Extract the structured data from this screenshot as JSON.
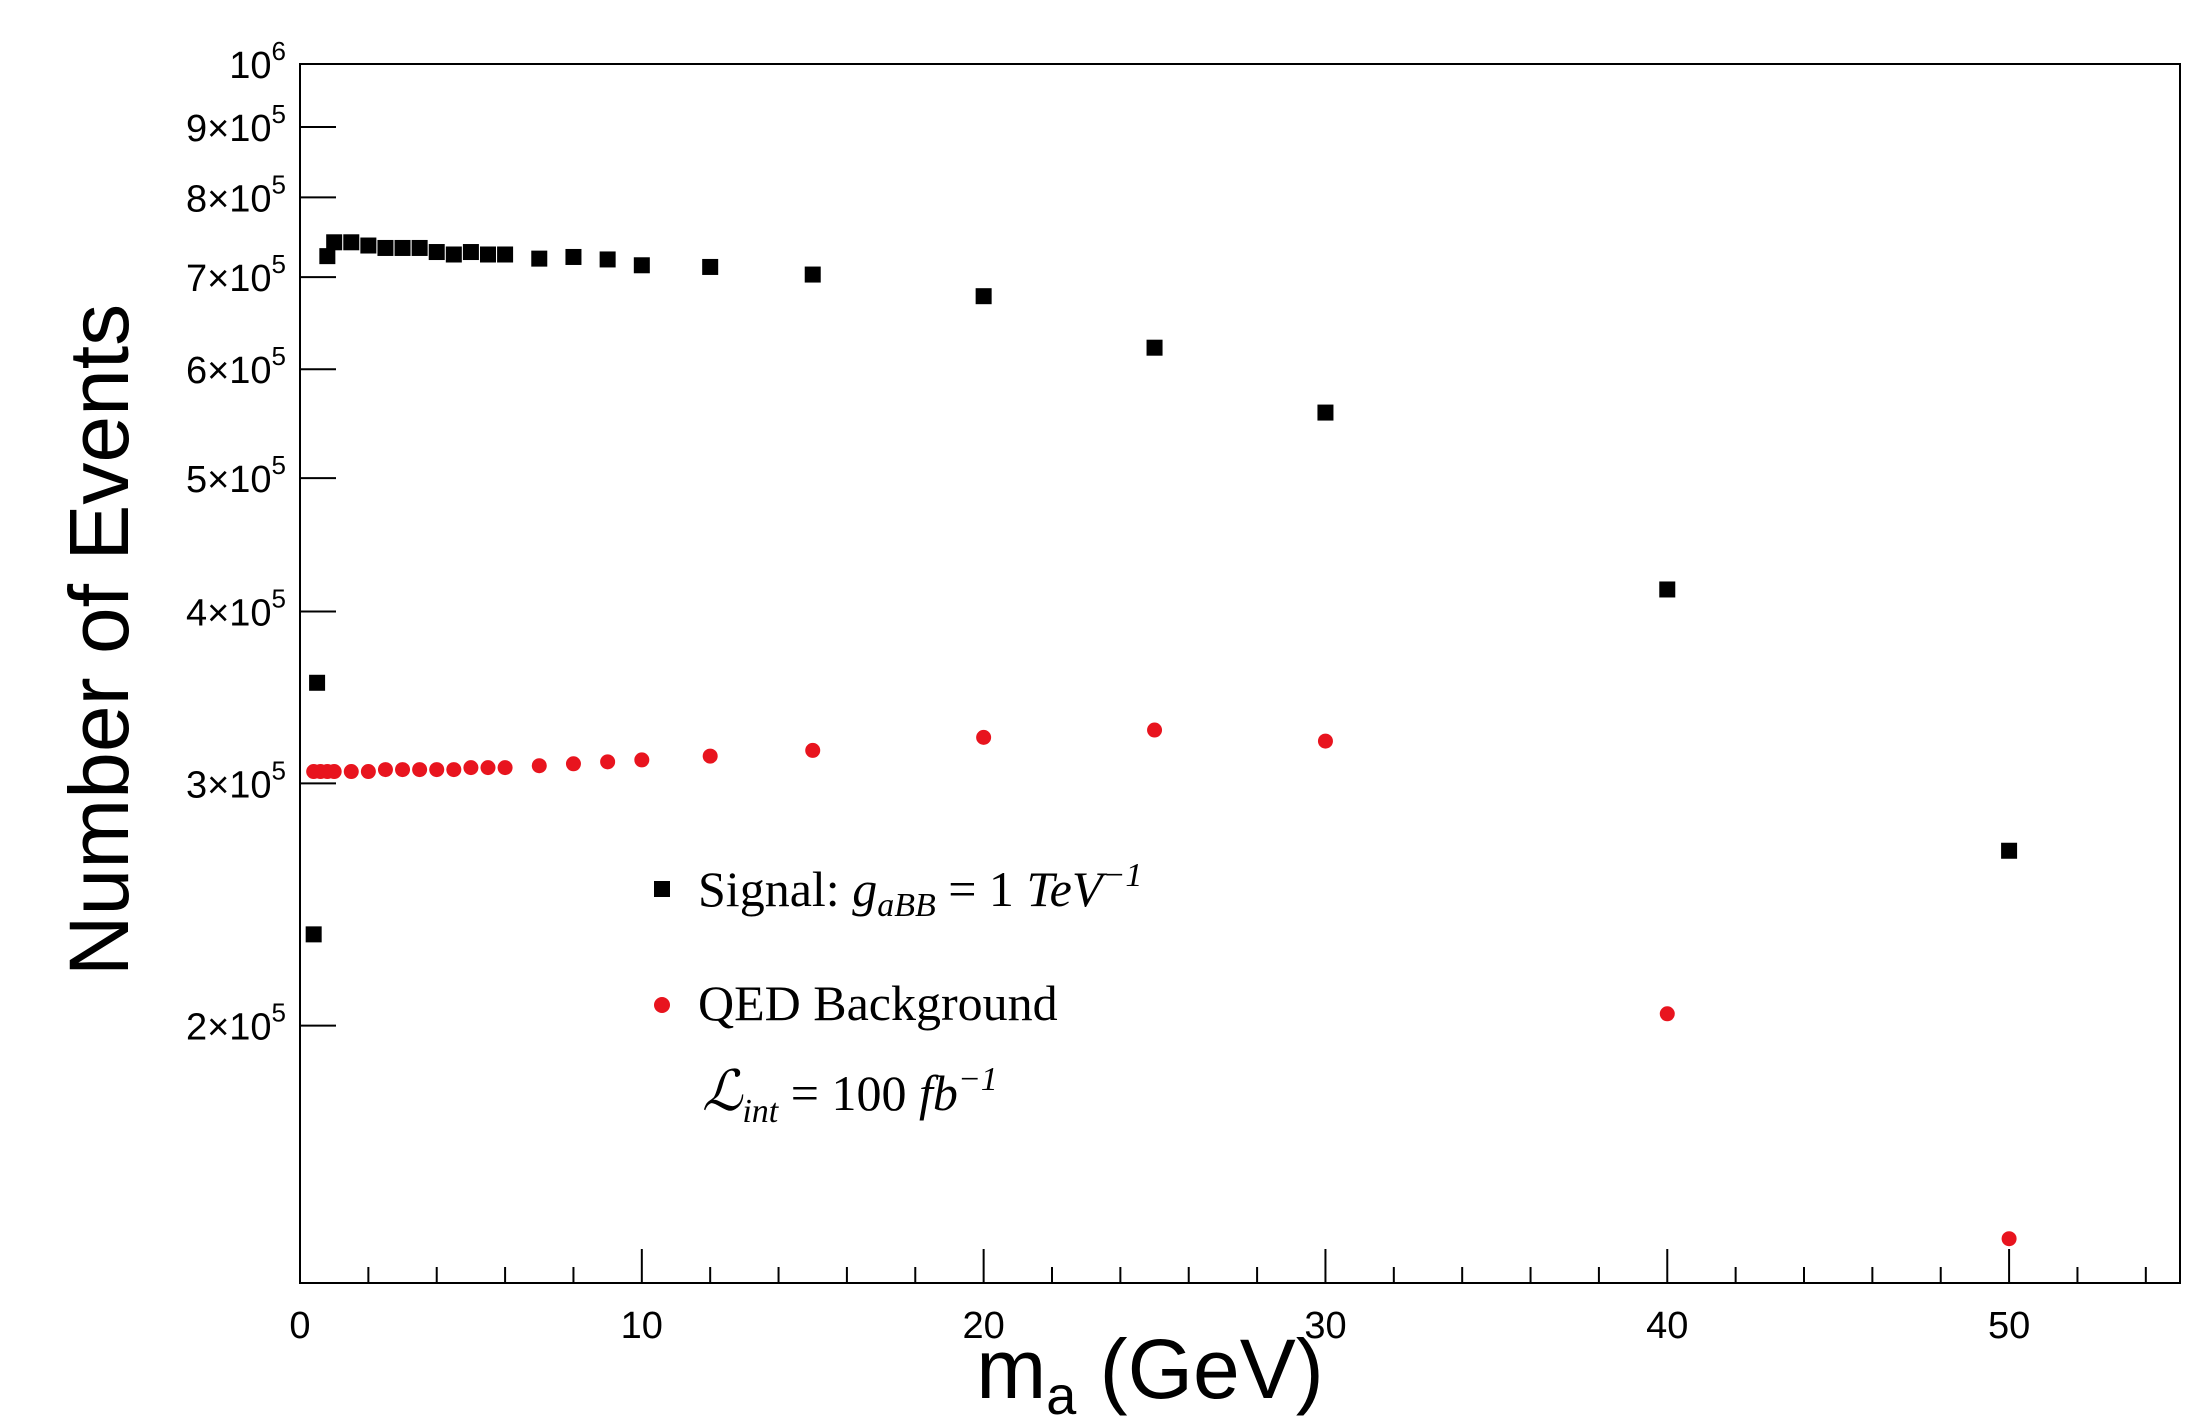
{
  "chart_data": {
    "type": "scatter",
    "title": "",
    "xlabel": "m_a (GeV)",
    "xlabel_main": "m",
    "xlabel_sub": "a",
    "xlabel_unit": " (GeV)",
    "ylabel": "Number of Events",
    "xlim": [
      0,
      55
    ],
    "ylim": [
      130000,
      1000000
    ],
    "y_scale": "log",
    "x_major_ticks": [
      0,
      10,
      20,
      30,
      40,
      50
    ],
    "x_tick_labels": [
      "0",
      "10",
      "20",
      "30",
      "40",
      "50"
    ],
    "x_minor_step": 2,
    "y_ticks": [
      {
        "value": 200000,
        "mantissa": "2",
        "base": "×10",
        "exp": "5"
      },
      {
        "value": 300000,
        "mantissa": "3",
        "base": "×10",
        "exp": "5"
      },
      {
        "value": 400000,
        "mantissa": "4",
        "base": "×10",
        "exp": "5"
      },
      {
        "value": 500000,
        "mantissa": "5",
        "base": "×10",
        "exp": "5"
      },
      {
        "value": 600000,
        "mantissa": "6",
        "base": "×10",
        "exp": "5"
      },
      {
        "value": 700000,
        "mantissa": "7",
        "base": "×10",
        "exp": "5"
      },
      {
        "value": 800000,
        "mantissa": "8",
        "base": "×10",
        "exp": "5"
      },
      {
        "value": 900000,
        "mantissa": "9",
        "base": "×10",
        "exp": "5"
      },
      {
        "value": 1000000,
        "mantissa": "",
        "base": "10",
        "exp": "6"
      }
    ],
    "series": [
      {
        "name": "Signal",
        "marker": "square",
        "color": "#000000",
        "x": [
          0.4,
          0.5,
          0.8,
          1.0,
          1.5,
          2.0,
          2.5,
          3.0,
          3.5,
          4.0,
          4.5,
          5.0,
          5.5,
          6.0,
          7.0,
          8.0,
          9.0,
          10.0,
          12.0,
          15.0,
          20.0,
          25.0,
          30.0,
          40.0,
          50.0
        ],
        "y": [
          233000,
          355000,
          725000,
          742000,
          742000,
          738000,
          735000,
          735000,
          735000,
          730000,
          727000,
          730000,
          727000,
          727000,
          722000,
          724000,
          721000,
          714000,
          712000,
          703000,
          678000,
          622000,
          558000,
          415000,
          268000
        ]
      },
      {
        "name": "QED Background",
        "marker": "circle",
        "color": "#e8141e",
        "x": [
          0.4,
          0.6,
          0.8,
          1.0,
          1.5,
          2.0,
          2.5,
          3.0,
          3.5,
          4.0,
          4.5,
          5.0,
          5.5,
          6.0,
          7.0,
          8.0,
          9.0,
          10.0,
          12.0,
          15.0,
          20.0,
          25.0,
          30.0,
          40.0,
          50.0
        ],
        "y": [
          306000,
          306000,
          306000,
          306000,
          306000,
          306000,
          307000,
          307000,
          307000,
          307000,
          307000,
          308000,
          308000,
          308000,
          309000,
          310000,
          311000,
          312000,
          314000,
          317000,
          324000,
          328000,
          322000,
          204000,
          140000
        ]
      }
    ],
    "legend": {
      "placement": "lower-center",
      "entries": [
        {
          "marker": "square",
          "color": "#000000",
          "prefix": "Signal: ",
          "math_base": "g",
          "math_sub": "aBB",
          "math_rest": " = 1 ",
          "math_unit": "TeV",
          "math_exp": "−1"
        },
        {
          "marker": "circle",
          "color": "#e8141e",
          "prefix": "QED Background"
        }
      ],
      "lumi": {
        "symbol": "ℒ",
        "sub": "int",
        "rest": " = 100 ",
        "unit": "fb",
        "exp": "−1"
      }
    }
  }
}
